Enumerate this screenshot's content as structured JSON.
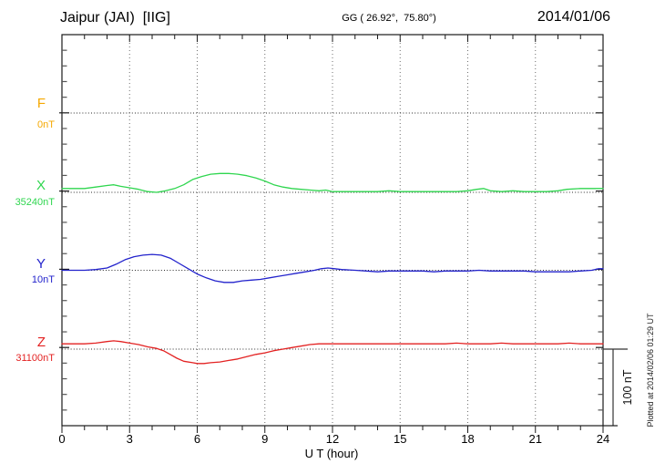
{
  "header": {
    "title": "Jaipur (JAI)  [IIG]",
    "coordinates": "GG ( 26.92°,  75.80°)",
    "date": "2014/01/06"
  },
  "components": [
    {
      "id": "F",
      "label": "F",
      "baseline_label": "0nT",
      "color": "#f5a800"
    },
    {
      "id": "X",
      "label": "X",
      "baseline_label": "35240nT",
      "color": "#2fd64f"
    },
    {
      "id": "Y",
      "label": "Y",
      "baseline_label": "10nT",
      "color": "#2323cc"
    },
    {
      "id": "Z",
      "label": "Z",
      "baseline_label": "31100nT",
      "color": "#e32222"
    }
  ],
  "xaxis": {
    "label": "U T (hour)"
  },
  "scale_bar": {
    "label": "100 nT",
    "span_nT": 100
  },
  "watermark": {
    "text": "Plotted at 2014/02/06 01:29 UT"
  },
  "chart_data": {
    "type": "line",
    "title": "Jaipur (JAI) [IIG] magnetogram 2014/01/06",
    "xlabel": "U T (hour)",
    "x_range": [
      0,
      24
    ],
    "x_ticks": [
      0,
      3,
      6,
      9,
      12,
      15,
      18,
      21,
      24
    ],
    "grid": "dotted vertical gridlines every 3 h; dotted horizontal baseline per component",
    "legend_position": "left margin component labels",
    "y_units": "nT offset from each component baseline",
    "scale_bar_nT": 100,
    "series": [
      {
        "name": "F",
        "baseline": "0nT",
        "points": []
      },
      {
        "name": "X",
        "baseline": "35240nT",
        "points": [
          [
            0,
            5
          ],
          [
            0.5,
            5
          ],
          [
            1,
            5
          ],
          [
            1.5,
            7
          ],
          [
            2,
            9
          ],
          [
            2.3,
            10
          ],
          [
            2.6,
            8
          ],
          [
            3,
            6
          ],
          [
            3.4,
            4
          ],
          [
            3.8,
            1
          ],
          [
            4.2,
            0
          ],
          [
            4.6,
            2
          ],
          [
            5,
            5
          ],
          [
            5.4,
            10
          ],
          [
            5.8,
            17
          ],
          [
            6.2,
            21
          ],
          [
            6.6,
            24
          ],
          [
            7,
            25
          ],
          [
            7.4,
            25
          ],
          [
            7.8,
            24
          ],
          [
            8.2,
            22
          ],
          [
            8.6,
            19
          ],
          [
            9,
            15
          ],
          [
            9.4,
            10
          ],
          [
            9.8,
            7
          ],
          [
            10.2,
            5
          ],
          [
            10.6,
            4
          ],
          [
            11,
            3
          ],
          [
            11.4,
            2
          ],
          [
            11.7,
            3
          ],
          [
            12,
            1
          ],
          [
            12.5,
            1
          ],
          [
            13,
            1
          ],
          [
            13.5,
            1
          ],
          [
            14,
            1
          ],
          [
            14.5,
            2
          ],
          [
            15,
            1
          ],
          [
            15.5,
            1
          ],
          [
            16,
            1
          ],
          [
            16.5,
            1
          ],
          [
            17,
            1
          ],
          [
            17.5,
            1
          ],
          [
            18,
            2
          ],
          [
            18.4,
            4
          ],
          [
            18.7,
            5
          ],
          [
            19,
            2
          ],
          [
            19.5,
            1
          ],
          [
            20,
            2
          ],
          [
            20.5,
            1
          ],
          [
            21,
            1
          ],
          [
            21.5,
            1
          ],
          [
            22,
            2
          ],
          [
            22.4,
            4
          ],
          [
            23,
            5
          ],
          [
            23.5,
            5
          ],
          [
            24,
            5
          ]
        ]
      },
      {
        "name": "Y",
        "baseline": "10nT",
        "points": [
          [
            0,
            0
          ],
          [
            0.5,
            0
          ],
          [
            1,
            0
          ],
          [
            1.5,
            1
          ],
          [
            2,
            3
          ],
          [
            2.4,
            8
          ],
          [
            2.8,
            14
          ],
          [
            3.2,
            18
          ],
          [
            3.6,
            20
          ],
          [
            4,
            21
          ],
          [
            4.4,
            20
          ],
          [
            4.8,
            16
          ],
          [
            5.2,
            9
          ],
          [
            5.6,
            2
          ],
          [
            6,
            -5
          ],
          [
            6.4,
            -10
          ],
          [
            6.8,
            -14
          ],
          [
            7.2,
            -16
          ],
          [
            7.6,
            -16
          ],
          [
            8,
            -14
          ],
          [
            8.4,
            -13
          ],
          [
            8.8,
            -12
          ],
          [
            9.2,
            -10
          ],
          [
            9.6,
            -8
          ],
          [
            10,
            -6
          ],
          [
            10.4,
            -4
          ],
          [
            10.8,
            -2
          ],
          [
            11.2,
            0
          ],
          [
            11.5,
            2
          ],
          [
            11.8,
            3
          ],
          [
            12.1,
            2
          ],
          [
            12.4,
            1
          ],
          [
            13,
            0
          ],
          [
            13.5,
            -1
          ],
          [
            14,
            -2
          ],
          [
            14.5,
            -1
          ],
          [
            15,
            -1
          ],
          [
            15.5,
            -1
          ],
          [
            16,
            -1
          ],
          [
            16.5,
            -2
          ],
          [
            17,
            -1
          ],
          [
            17.5,
            -1
          ],
          [
            18,
            -1
          ],
          [
            18.5,
            0
          ],
          [
            19,
            -1
          ],
          [
            19.5,
            -1
          ],
          [
            20,
            -1
          ],
          [
            20.5,
            -1
          ],
          [
            21,
            -2
          ],
          [
            21.5,
            -2
          ],
          [
            22,
            -2
          ],
          [
            22.5,
            -2
          ],
          [
            23,
            -1
          ],
          [
            23.5,
            0
          ],
          [
            23.8,
            2
          ],
          [
            24,
            2
          ]
        ]
      },
      {
        "name": "Z",
        "baseline": "31100nT",
        "points": [
          [
            0,
            7
          ],
          [
            0.5,
            7
          ],
          [
            1,
            7
          ],
          [
            1.5,
            8
          ],
          [
            2,
            10
          ],
          [
            2.3,
            11
          ],
          [
            2.6,
            10
          ],
          [
            3,
            8
          ],
          [
            3.4,
            6
          ],
          [
            3.8,
            3
          ],
          [
            4.2,
            1
          ],
          [
            4.5,
            -2
          ],
          [
            4.8,
            -7
          ],
          [
            5.1,
            -12
          ],
          [
            5.4,
            -16
          ],
          [
            5.8,
            -18
          ],
          [
            6,
            -19
          ],
          [
            6.3,
            -19
          ],
          [
            6.6,
            -18
          ],
          [
            7,
            -17
          ],
          [
            7.4,
            -15
          ],
          [
            7.8,
            -13
          ],
          [
            8.2,
            -10
          ],
          [
            8.6,
            -7
          ],
          [
            9,
            -5
          ],
          [
            9.4,
            -2
          ],
          [
            9.8,
            0
          ],
          [
            10.2,
            2
          ],
          [
            10.6,
            4
          ],
          [
            11,
            6
          ],
          [
            11.4,
            7
          ],
          [
            12,
            7
          ],
          [
            12.5,
            7
          ],
          [
            13,
            7
          ],
          [
            13.5,
            7
          ],
          [
            14,
            7
          ],
          [
            14.5,
            7
          ],
          [
            15,
            7
          ],
          [
            15.5,
            7
          ],
          [
            16,
            7
          ],
          [
            16.5,
            7
          ],
          [
            17,
            7
          ],
          [
            17.5,
            8
          ],
          [
            18,
            7
          ],
          [
            18.5,
            7
          ],
          [
            19,
            7
          ],
          [
            19.5,
            8
          ],
          [
            20,
            7
          ],
          [
            20.5,
            7
          ],
          [
            21,
            7
          ],
          [
            21.5,
            7
          ],
          [
            22,
            7
          ],
          [
            22.5,
            8
          ],
          [
            23,
            7
          ],
          [
            23.5,
            7
          ],
          [
            24,
            7
          ]
        ]
      }
    ]
  }
}
